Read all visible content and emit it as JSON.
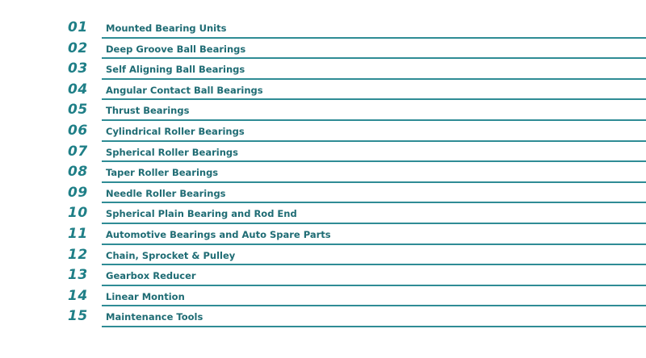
{
  "items": [
    {
      "number": "01",
      "label": "Mounted Bearing Units"
    },
    {
      "number": "02",
      "label": "Deep Groove Ball Bearings"
    },
    {
      "number": "03",
      "label": "Self Aligning Ball Bearings"
    },
    {
      "number": "04",
      "label": "Angular Contact Ball Bearings"
    },
    {
      "number": "05",
      "label": "Thrust Bearings"
    },
    {
      "number": "06",
      "label": "Cylindrical Roller Bearings"
    },
    {
      "number": "07",
      "label": "Spherical Roller Bearings"
    },
    {
      "number": "08",
      "label": "Taper Roller Bearings"
    },
    {
      "number": "09",
      "label": "Needle Roller Bearings"
    },
    {
      "number": "10",
      "label": "Spherical Plain Bearing and Rod End"
    },
    {
      "number": "11",
      "label": "Automotive Bearings and Auto Spare Parts"
    },
    {
      "number": "12",
      "label": "Chain, Sprocket & Pulley"
    },
    {
      "number": "13",
      "label": "Gearbox Reducer"
    },
    {
      "number": "14",
      "label": "Linear Montion"
    },
    {
      "number": "15",
      "label": "Maintenance Tools"
    }
  ],
  "colors": {
    "number": "#1f7f87",
    "label": "#1f6c74",
    "rule": "#2f8c95"
  }
}
